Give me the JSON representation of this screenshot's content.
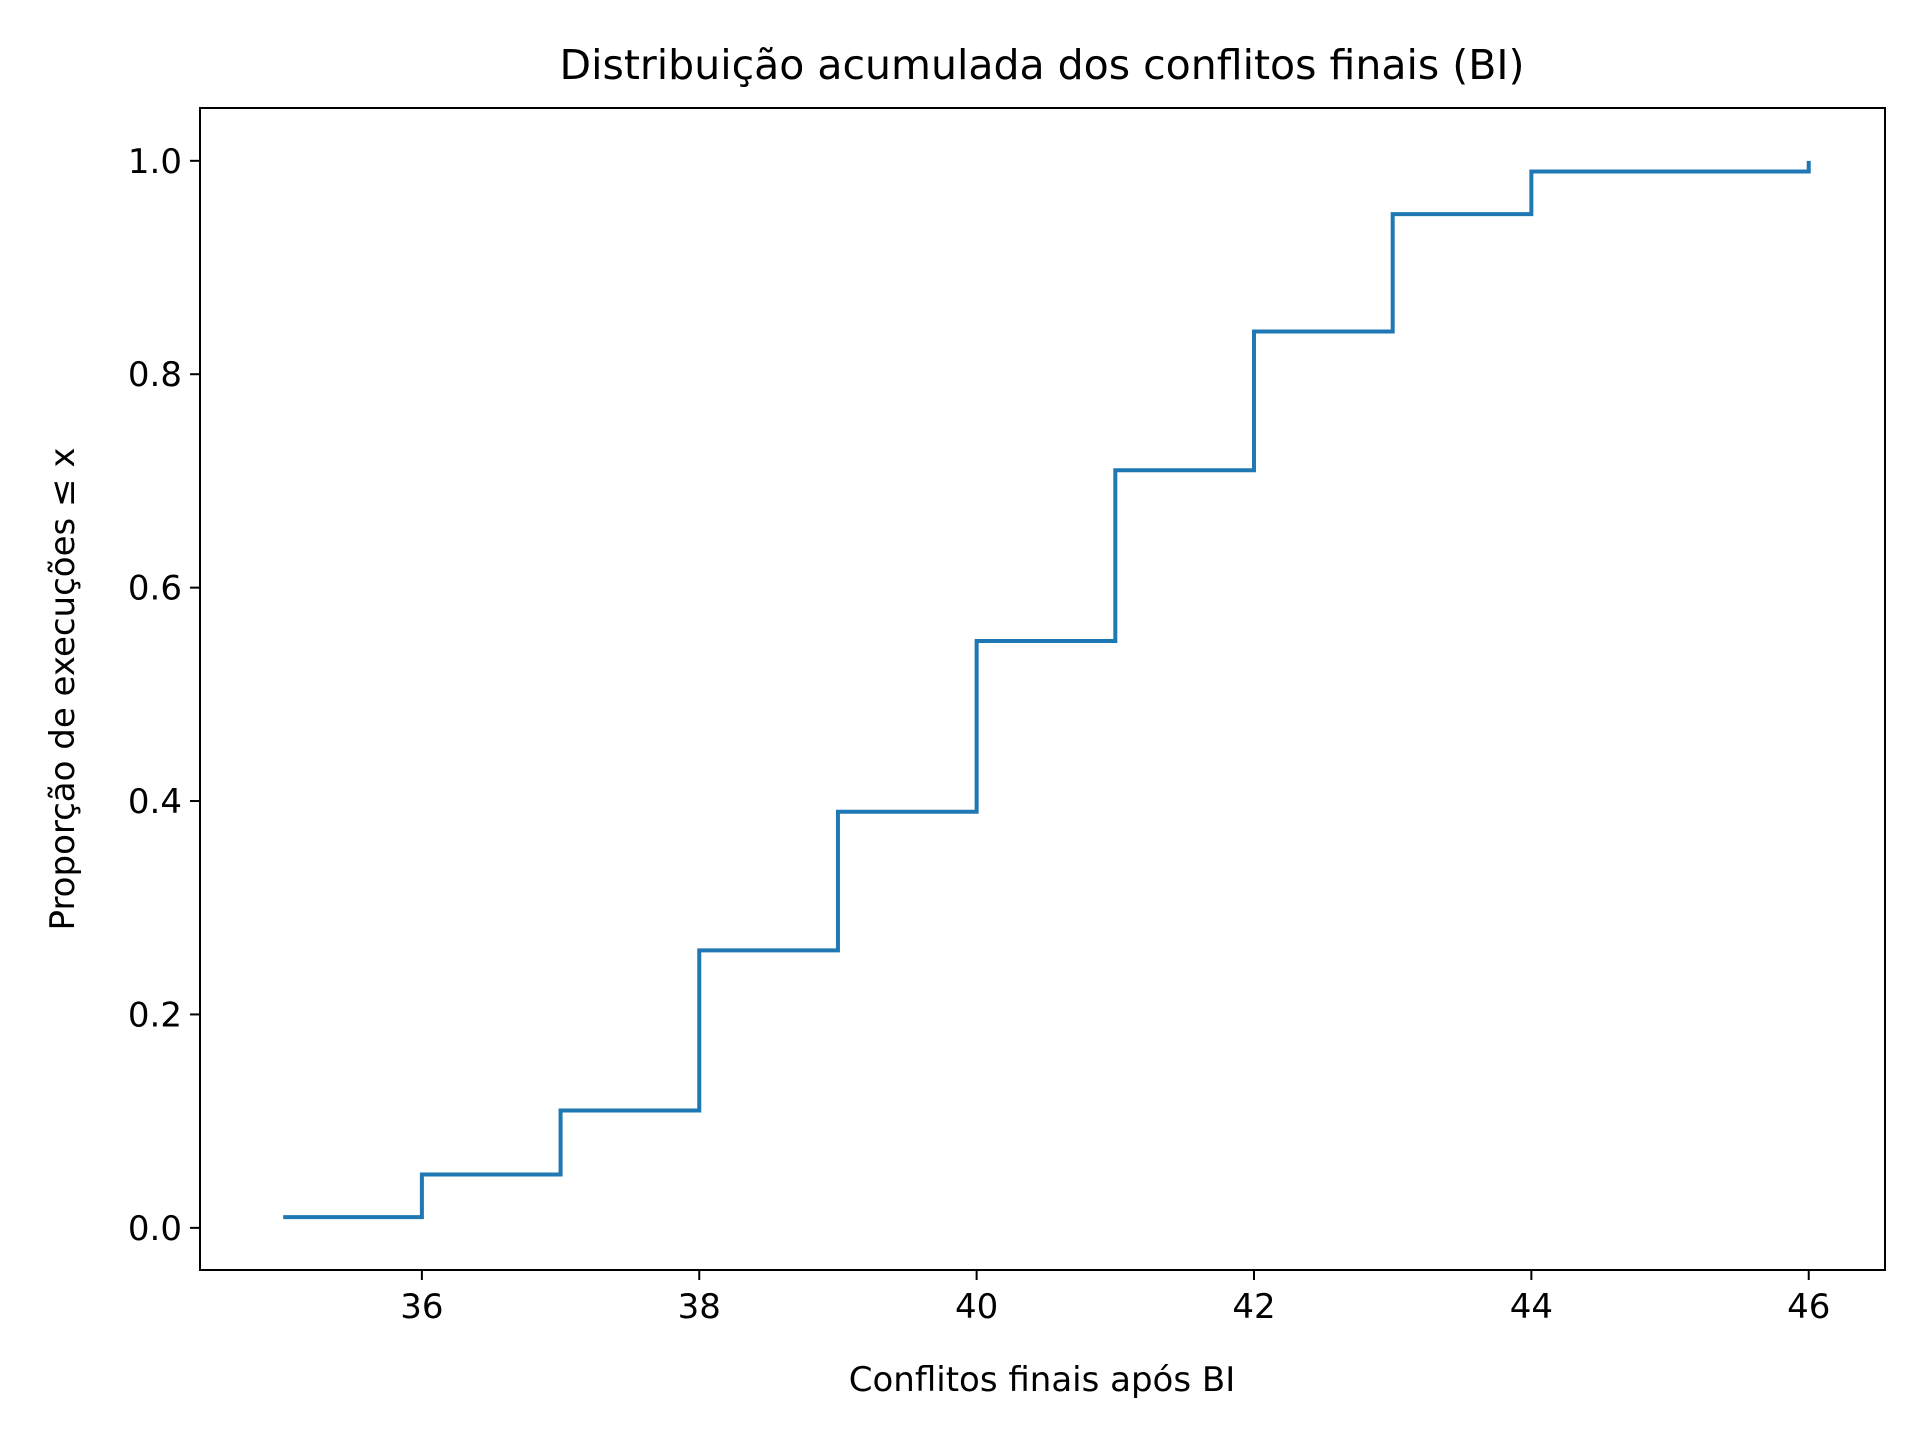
{
  "chart_data": {
    "type": "line",
    "style": "step-post",
    "title": "Distribuição acumulada dos conflitos finais (BI)",
    "xlabel": "Conflitos finais após BI",
    "ylabel": "Proporção de execuções ≤ x",
    "xlim": [
      34.4,
      46.55
    ],
    "ylim": [
      -0.0395,
      1.0495
    ],
    "x_ticks": [
      36,
      38,
      40,
      42,
      44,
      46
    ],
    "x_tick_labels": [
      "36",
      "38",
      "40",
      "42",
      "44",
      "46"
    ],
    "y_ticks": [
      0.0,
      0.2,
      0.4,
      0.6,
      0.8,
      1.0
    ],
    "y_tick_labels": [
      "0.0",
      "0.2",
      "0.4",
      "0.6",
      "0.8",
      "1.0"
    ],
    "grid": false,
    "legend": "none",
    "series": [
      {
        "color": "#1f77b4",
        "x": [
          35,
          36,
          37,
          38,
          39,
          40,
          41,
          42,
          43,
          44,
          46
        ],
        "y": [
          0.01,
          0.05,
          0.11,
          0.26,
          0.39,
          0.55,
          0.71,
          0.84,
          0.95,
          0.99,
          1.0
        ]
      }
    ]
  }
}
